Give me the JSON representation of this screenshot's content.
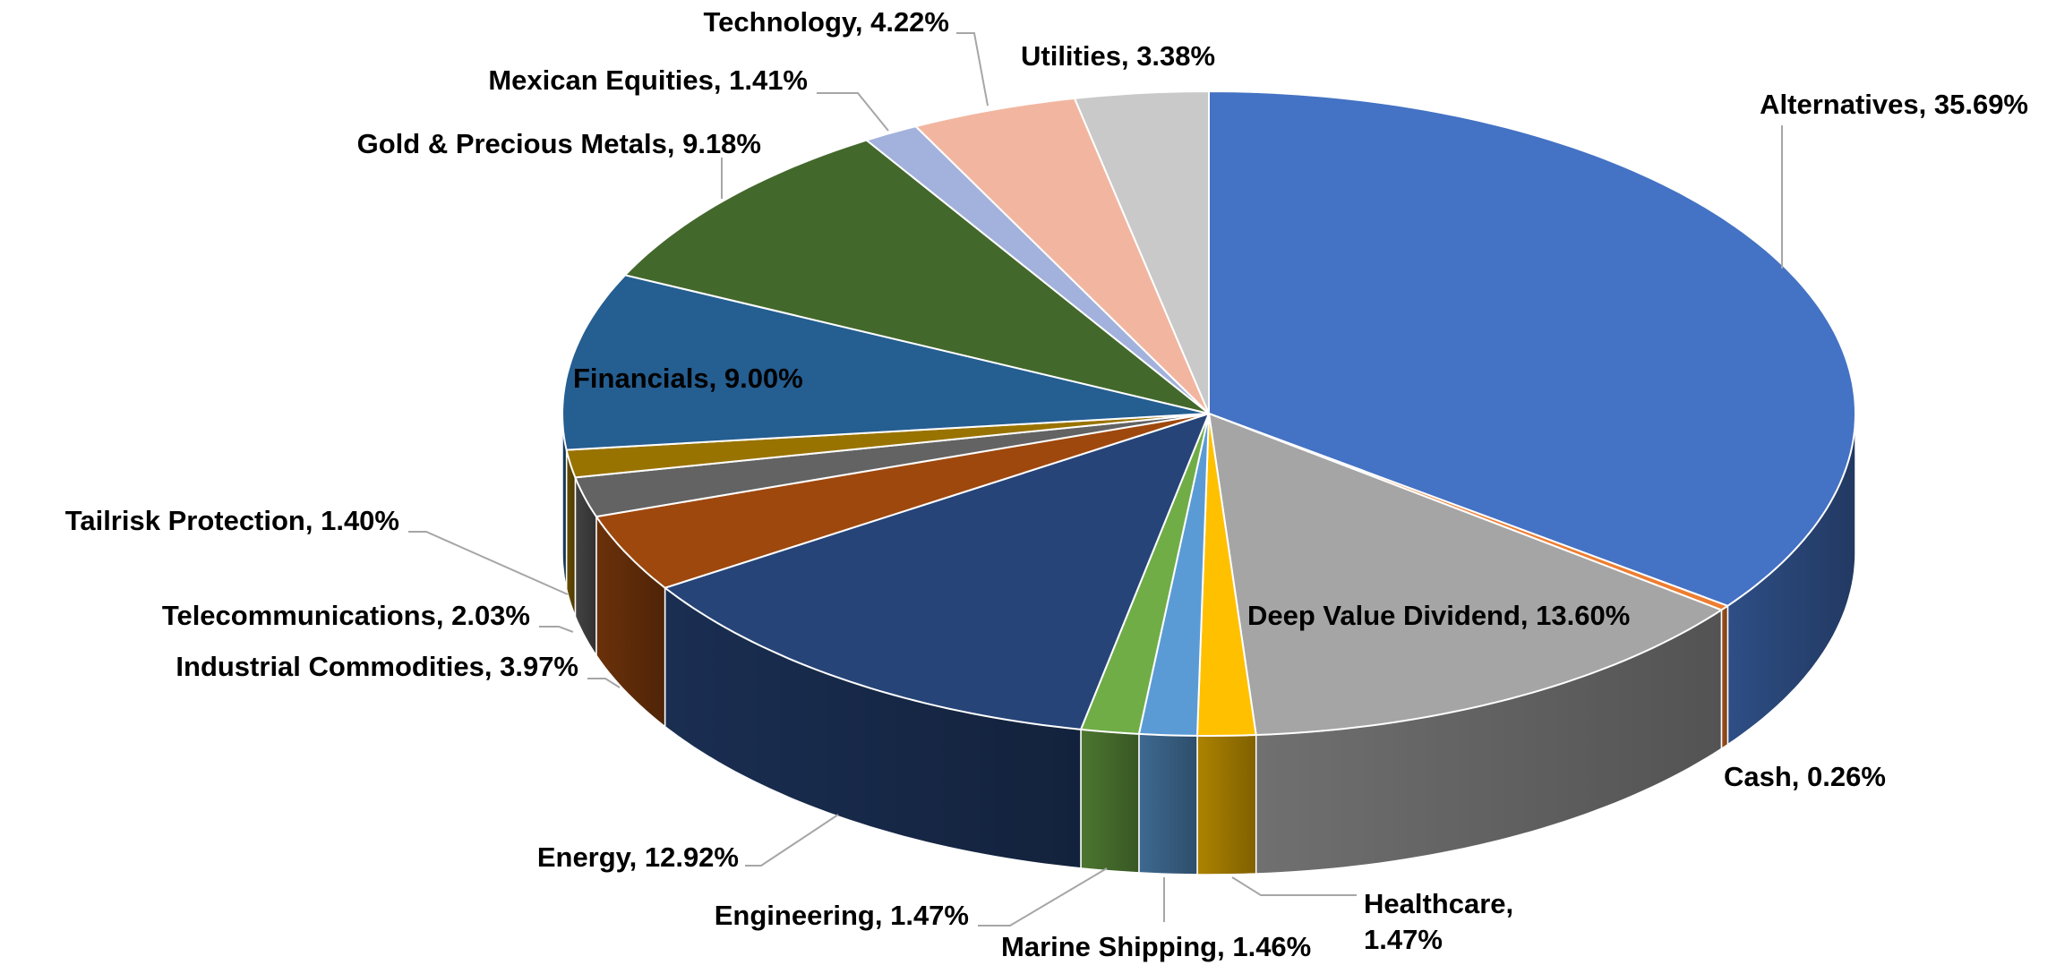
{
  "chart_data": {
    "type": "pie",
    "style": "3d",
    "title": "",
    "start": "top",
    "direction": "clockwise",
    "slices": [
      {
        "label": "Alternatives",
        "value": 35.69,
        "display": "Alternatives, 35.69%",
        "color": "#4472c4"
      },
      {
        "label": "Cash",
        "value": 0.26,
        "display": "Cash, 0.26%",
        "color": "#ed7d31"
      },
      {
        "label": "Deep Value Dividend",
        "value": 13.6,
        "display": "Deep Value Dividend, 13.60%",
        "color": "#a5a5a5"
      },
      {
        "label": "Healthcare",
        "value": 1.47,
        "display": "Healthcare, 1.47%",
        "display_lines": [
          "Healthcare,",
          "1.47%"
        ],
        "color": "#ffc000"
      },
      {
        "label": "Marine Shipping",
        "value": 1.46,
        "display": "Marine Shipping, 1.46%",
        "color": "#5b9bd5"
      },
      {
        "label": "Engineering",
        "value": 1.47,
        "display": "Engineering, 1.47%",
        "color": "#70ad47"
      },
      {
        "label": "Energy",
        "value": 12.92,
        "display": "Energy, 12.92%",
        "color": "#264478"
      },
      {
        "label": "Industrial Commodities",
        "value": 3.97,
        "display": "Industrial Commodities, 3.97%",
        "color": "#9e480e"
      },
      {
        "label": "Telecommunications",
        "value": 2.03,
        "display": "Telecommunications, 2.03%",
        "color": "#636363"
      },
      {
        "label": "Tailrisk Protection",
        "value": 1.4,
        "display": "Tailrisk Protection, 1.40%",
        "color": "#997300"
      },
      {
        "label": "Financials",
        "value": 9.0,
        "display": "Financials, 9.00%",
        "color": "#255e91"
      },
      {
        "label": "Gold & Precious Metals",
        "value": 9.18,
        "display": "Gold & Precious Metals, 9.18%",
        "color": "#43682b"
      },
      {
        "label": "Mexican Equities",
        "value": 1.41,
        "display": "Mexican Equities, 1.41%",
        "color": "#a3b2dc"
      },
      {
        "label": "Technology",
        "value": 4.22,
        "display": "Technology, 4.22%",
        "color": "#f2b6a0"
      },
      {
        "label": "Utilities",
        "value": 3.38,
        "display": "Utilities, 3.38%",
        "color": "#c9c9c9"
      }
    ]
  }
}
